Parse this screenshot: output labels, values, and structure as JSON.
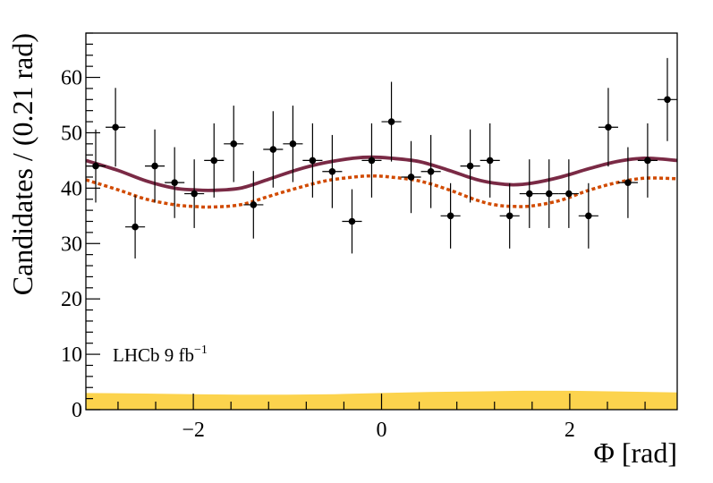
{
  "chart_data": {
    "type": "scatter",
    "xlabel": "Φ [rad]",
    "ylabel": "Candidates / (0.21 rad)",
    "xlim": [
      -3.1416,
      3.1416
    ],
    "ylim": [
      0,
      68
    ],
    "x_ticks": [
      -2,
      0,
      2
    ],
    "x_tick_labels": [
      "−2",
      "0",
      "2"
    ],
    "y_ticks": [
      0,
      10,
      20,
      30,
      40,
      50,
      60
    ],
    "y_tick_labels": [
      "0",
      "10",
      "20",
      "30",
      "40",
      "50",
      "60"
    ],
    "grid": false,
    "annotation": "LHCb 9 fb",
    "annotation_superscript": "−1",
    "bin_half_width": 0.105,
    "series": [
      {
        "kind": "data_points",
        "color": "#000000",
        "points": [
          {
            "x": -3.037,
            "y": 44,
            "err": 6.6
          },
          {
            "x": -2.827,
            "y": 51,
            "err": 7.1
          },
          {
            "x": -2.618,
            "y": 33,
            "err": 5.7
          },
          {
            "x": -2.409,
            "y": 44,
            "err": 6.6
          },
          {
            "x": -2.199,
            "y": 41,
            "err": 6.4
          },
          {
            "x": -1.99,
            "y": 39,
            "err": 6.2
          },
          {
            "x": -1.78,
            "y": 45,
            "err": 6.7
          },
          {
            "x": -1.571,
            "y": 48,
            "err": 6.9
          },
          {
            "x": -1.361,
            "y": 37,
            "err": 6.1
          },
          {
            "x": -1.152,
            "y": 47,
            "err": 6.9
          },
          {
            "x": -0.942,
            "y": 48,
            "err": 6.9
          },
          {
            "x": -0.733,
            "y": 45,
            "err": 6.7
          },
          {
            "x": -0.524,
            "y": 43,
            "err": 6.6
          },
          {
            "x": -0.314,
            "y": 34,
            "err": 5.8
          },
          {
            "x": -0.105,
            "y": 45,
            "err": 6.7
          },
          {
            "x": 0.105,
            "y": 52,
            "err": 7.2
          },
          {
            "x": 0.314,
            "y": 42,
            "err": 6.5
          },
          {
            "x": 0.524,
            "y": 43,
            "err": 6.6
          },
          {
            "x": 0.733,
            "y": 35,
            "err": 5.9
          },
          {
            "x": 0.942,
            "y": 44,
            "err": 6.6
          },
          {
            "x": 1.152,
            "y": 45,
            "err": 6.7
          },
          {
            "x": 1.361,
            "y": 35,
            "err": 5.9
          },
          {
            "x": 1.571,
            "y": 39,
            "err": 6.2
          },
          {
            "x": 1.78,
            "y": 39,
            "err": 6.2
          },
          {
            "x": 1.99,
            "y": 39,
            "err": 6.2
          },
          {
            "x": 2.199,
            "y": 35,
            "err": 5.9
          },
          {
            "x": 2.409,
            "y": 51,
            "err": 7.1
          },
          {
            "x": 2.618,
            "y": 41,
            "err": 6.4
          },
          {
            "x": 2.827,
            "y": 45,
            "err": 6.7
          },
          {
            "x": 3.037,
            "y": 56,
            "err": 7.5
          }
        ]
      },
      {
        "kind": "total_fit_curve",
        "color": "#7a2a45",
        "style": "solid",
        "x": [
          -3.14,
          -2.8,
          -2.5,
          -2.2,
          -2.0,
          -1.8,
          -1.5,
          -1.2,
          -0.9,
          -0.6,
          -0.3,
          -0.1,
          0.1,
          0.4,
          0.7,
          1.0,
          1.2,
          1.4,
          1.6,
          1.9,
          2.2,
          2.5,
          2.8,
          3.14
        ],
        "y": [
          45.0,
          43.2,
          41.3,
          40.0,
          39.7,
          39.6,
          40.0,
          41.6,
          43.3,
          44.6,
          45.4,
          45.6,
          45.4,
          44.8,
          43.3,
          41.6,
          40.9,
          40.6,
          40.9,
          42.0,
          43.5,
          44.8,
          45.4,
          45.0
        ]
      },
      {
        "kind": "signal_fit_curve",
        "color": "#d14a00",
        "style": "dotted",
        "x": [
          -3.14,
          -2.8,
          -2.5,
          -2.2,
          -2.0,
          -1.8,
          -1.5,
          -1.2,
          -0.9,
          -0.6,
          -0.3,
          -0.1,
          0.1,
          0.4,
          0.7,
          1.0,
          1.2,
          1.4,
          1.6,
          1.9,
          2.2,
          2.5,
          2.8,
          3.14
        ],
        "y": [
          41.5,
          39.7,
          38.0,
          37.0,
          36.7,
          36.6,
          37.0,
          38.5,
          40.0,
          41.3,
          42.0,
          42.2,
          42.0,
          41.3,
          39.8,
          37.9,
          37.0,
          36.7,
          36.8,
          37.8,
          39.6,
          41.0,
          41.8,
          41.7
        ]
      },
      {
        "kind": "background_band",
        "color": "#fcd34d",
        "x": [
          -3.14,
          -2.5,
          -2.0,
          -1.5,
          -1.0,
          -0.5,
          0.0,
          0.5,
          1.0,
          1.5,
          2.0,
          2.5,
          3.14
        ],
        "y_low": [
          0,
          0,
          0,
          0,
          0,
          0,
          0,
          0,
          0,
          0,
          0,
          0,
          0
        ],
        "y_high": [
          3.0,
          2.9,
          2.8,
          2.7,
          2.7,
          2.8,
          3.0,
          3.2,
          3.3,
          3.4,
          3.4,
          3.3,
          3.1
        ]
      }
    ]
  }
}
